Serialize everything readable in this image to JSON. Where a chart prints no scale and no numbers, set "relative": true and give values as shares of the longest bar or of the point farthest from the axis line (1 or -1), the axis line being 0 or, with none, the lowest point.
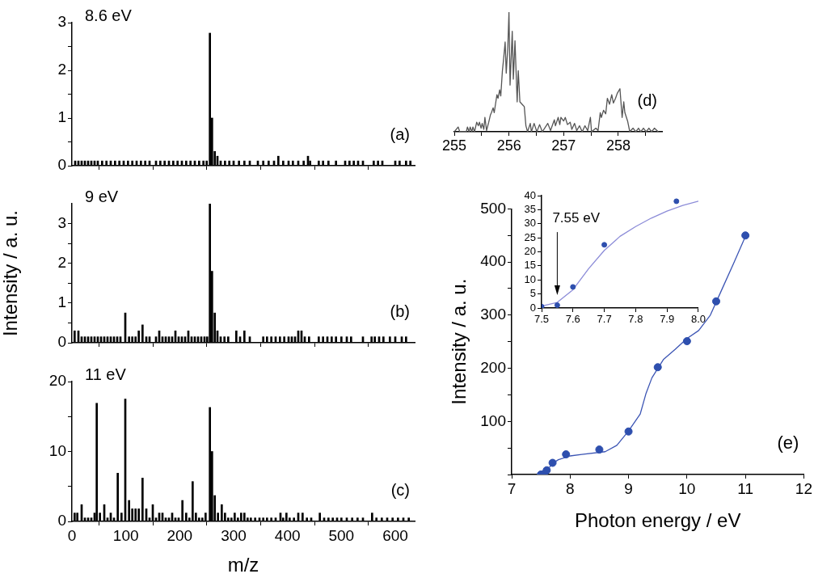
{
  "chart_data": [
    {
      "type": "bar",
      "color": "#000000",
      "x": [
        6,
        12,
        18,
        24,
        30,
        36,
        42,
        48,
        56,
        64,
        72,
        80,
        88,
        96,
        104,
        112,
        120,
        128,
        136,
        144,
        156,
        164,
        172,
        180,
        188,
        196,
        204,
        212,
        220,
        228,
        236,
        244,
        250,
        256,
        260,
        265,
        270,
        276,
        284,
        292,
        300,
        310,
        320,
        330,
        345,
        355,
        365,
        375,
        383,
        392,
        402,
        410,
        420,
        430,
        438,
        442,
        458,
        466,
        476,
        490,
        507,
        515,
        523,
        531,
        540,
        560,
        568,
        576,
        600,
        608,
        620,
        628
      ],
      "values": [
        0.1,
        0.1,
        0.1,
        0.1,
        0.1,
        0.1,
        0.1,
        0.1,
        0.1,
        0.1,
        0.1,
        0.1,
        0.1,
        0.1,
        0.1,
        0.1,
        0.1,
        0.1,
        0.1,
        0.1,
        0.1,
        0.1,
        0.1,
        0.1,
        0.1,
        0.1,
        0.1,
        0.1,
        0.1,
        0.1,
        0.1,
        0.1,
        0.1,
        2.78,
        1.0,
        0.3,
        0.2,
        0.1,
        0.1,
        0.1,
        0.1,
        0.1,
        0.1,
        0.1,
        0.1,
        0.1,
        0.1,
        0.1,
        0.2,
        0.1,
        0.1,
        0.1,
        0.1,
        0.1,
        0.2,
        0.1,
        0.1,
        0.1,
        0.1,
        0.1,
        0.1,
        0.1,
        0.1,
        0.1,
        0.1,
        0.1,
        0.1,
        0.1,
        0.1,
        0.1,
        0.1,
        0.1
      ],
      "xlim": [
        0,
        636
      ],
      "xticks": [
        0,
        100,
        200,
        300,
        400,
        500,
        600
      ],
      "ylim": [
        0,
        3
      ],
      "yticks": [
        0,
        {
          "value": 0.5,
          "label": null
        },
        1,
        {
          "value": 1.5,
          "label": null
        },
        2,
        {
          "value": 2.5,
          "label": null
        },
        3
      ],
      "tick_labels": "y",
      "annotations": [
        "8.6 eV",
        "(a)"
      ]
    },
    {
      "type": "bar",
      "color": "#000000",
      "x": [
        5,
        12,
        18,
        24,
        30,
        36,
        42,
        48,
        54,
        60,
        66,
        72,
        78,
        84,
        90,
        99,
        106,
        112,
        118,
        124,
        131,
        138,
        144,
        156,
        162,
        168,
        174,
        180,
        186,
        192,
        198,
        204,
        210,
        216,
        222,
        228,
        234,
        240,
        246,
        251,
        256,
        260,
        265,
        270,
        276,
        283,
        290,
        305,
        312,
        320,
        330,
        355,
        362,
        370,
        378,
        386,
        394,
        402,
        408,
        414,
        420,
        426,
        432,
        440,
        458,
        466,
        474,
        482,
        490,
        500,
        510,
        518,
        540,
        556,
        562,
        570,
        578,
        590,
        600,
        612,
        620
      ],
      "values": [
        0.3,
        0.3,
        0.15,
        0.15,
        0.15,
        0.15,
        0.15,
        0.15,
        0.15,
        0.15,
        0.15,
        0.15,
        0.15,
        0.15,
        0.15,
        0.75,
        0.15,
        0.15,
        0.15,
        0.3,
        0.45,
        0.15,
        0.15,
        0.15,
        0.3,
        0.15,
        0.15,
        0.15,
        0.15,
        0.3,
        0.15,
        0.15,
        0.15,
        0.3,
        0.15,
        0.15,
        0.15,
        0.15,
        0.15,
        0.15,
        3.5,
        1.8,
        0.75,
        0.3,
        0.15,
        0.15,
        0.15,
        0.3,
        0.15,
        0.3,
        0.15,
        0.15,
        0.15,
        0.15,
        0.15,
        0.15,
        0.15,
        0.15,
        0.15,
        0.15,
        0.3,
        0.3,
        0.15,
        0.15,
        0.15,
        0.15,
        0.15,
        0.15,
        0.15,
        0.15,
        0.15,
        0.15,
        0.15,
        0.15,
        0.15,
        0.15,
        0.15,
        0.15,
        0.15,
        0.15,
        0.15
      ],
      "xlim": [
        0,
        636
      ],
      "xticks": [
        0,
        100,
        200,
        300,
        400,
        500,
        600
      ],
      "ylim": [
        0,
        3.5
      ],
      "yticks": [
        0,
        {
          "value": 0.5,
          "label": null
        },
        1,
        {
          "value": 1.5,
          "label": null
        },
        2,
        {
          "value": 2.5,
          "label": null
        },
        3
      ],
      "tick_labels": "y",
      "ylabel": "Intensity / a. u.",
      "annotations": [
        "9 eV",
        "(b)"
      ]
    },
    {
      "type": "bar",
      "color": "#000000",
      "x": [
        5,
        10,
        18,
        24,
        30,
        36,
        42,
        46,
        52,
        60,
        66,
        72,
        78,
        85,
        92,
        99,
        106,
        112,
        118,
        124,
        131,
        138,
        144,
        150,
        156,
        162,
        168,
        174,
        180,
        186,
        192,
        198,
        205,
        212,
        218,
        224,
        230,
        236,
        242,
        248,
        256,
        260,
        265,
        271,
        278,
        284,
        290,
        296,
        302,
        308,
        314,
        320,
        326,
        332,
        340,
        348,
        355,
        362,
        370,
        378,
        387,
        392,
        398,
        404,
        412,
        420,
        428,
        436,
        444,
        460,
        468,
        476,
        484,
        492,
        500,
        510,
        520,
        530,
        540,
        557,
        565,
        575,
        585,
        595,
        605,
        615,
        625
      ],
      "values": [
        1.2,
        1.2,
        2.4,
        0.5,
        0.5,
        0.5,
        1.2,
        16.9,
        1.2,
        2.4,
        0.5,
        1.2,
        0.5,
        6.9,
        1.2,
        17.5,
        3.0,
        1.8,
        1.8,
        1.8,
        6.2,
        1.8,
        0.5,
        2.4,
        0.5,
        1.2,
        1.2,
        0.5,
        0.5,
        1.2,
        0.5,
        0.5,
        3.0,
        1.2,
        0.5,
        5.7,
        1.2,
        0.5,
        0.5,
        1.2,
        16.3,
        10,
        3.7,
        1.2,
        2.4,
        1.2,
        0.5,
        0.5,
        1.2,
        0.5,
        1.2,
        1.2,
        0.5,
        0.5,
        0.5,
        0.5,
        0.5,
        0.5,
        0.5,
        0.5,
        1.2,
        0.5,
        1.2,
        0.5,
        0.5,
        1.2,
        1.2,
        0.5,
        0.5,
        1.2,
        0.5,
        0.5,
        0.5,
        0.5,
        0.5,
        0.5,
        0.5,
        0.5,
        0.5,
        1.2,
        0.5,
        0.5,
        0.5,
        0.5,
        0.5,
        0.5,
        0.5
      ],
      "xlim": [
        0,
        636
      ],
      "xticks": [
        0,
        100,
        200,
        300,
        400,
        500,
        600
      ],
      "ylim": [
        0,
        20
      ],
      "yticks": [
        0,
        {
          "value": 5,
          "label": null
        },
        10,
        {
          "value": 15,
          "label": null
        },
        20
      ],
      "xlabel": "m/z",
      "annotations": [
        "11 eV",
        "(c)"
      ]
    },
    {
      "type": "line",
      "relative": true,
      "color": "#555555",
      "marker": "none",
      "x": [
        255.0,
        255.07,
        255.1,
        255.22,
        255.24,
        255.27,
        255.29,
        255.32,
        255.34,
        255.37,
        255.41,
        255.44,
        255.46,
        255.49,
        255.51,
        255.54,
        255.56,
        255.59,
        255.63,
        255.66,
        255.68,
        255.71,
        255.73,
        255.76,
        255.78,
        255.8,
        255.83,
        255.85,
        255.88,
        255.9,
        255.93,
        255.95,
        255.98,
        256.0,
        256.02,
        256.06,
        256.08,
        256.11,
        256.15,
        256.17,
        256.2,
        256.24,
        256.28,
        256.31,
        256.34,
        256.39,
        256.41,
        256.46,
        256.51,
        256.56,
        256.61,
        256.71,
        256.76,
        256.83,
        256.85,
        256.9,
        256.93,
        256.95,
        257.0,
        257.03,
        257.07,
        257.12,
        257.15,
        257.2,
        257.24,
        257.29,
        257.34,
        257.39,
        257.44,
        257.49,
        257.51,
        257.59,
        257.63,
        257.67,
        257.69,
        257.73,
        257.77,
        257.8,
        257.84,
        257.88,
        257.91,
        257.95,
        257.98,
        258.03,
        258.07,
        258.1,
        258.12,
        258.17,
        258.21,
        258.27,
        258.32,
        258.37,
        258.41,
        258.46,
        258.51,
        258.56,
        258.61,
        258.66,
        258.73
      ],
      "values": [
        0,
        0.04,
        0,
        0,
        0.04,
        0,
        0.04,
        0,
        0.04,
        0,
        0.08,
        0.05,
        0.08,
        0.03,
        0.07,
        0.02,
        0.12,
        0.01,
        0.08,
        0.14,
        0.16,
        0.2,
        0.16,
        0.25,
        0.31,
        0.28,
        0.35,
        0.3,
        0.51,
        0.6,
        0.75,
        0.49,
        0.72,
        1.0,
        0.39,
        0.84,
        0.44,
        0.76,
        0.25,
        0.51,
        0.25,
        0.23,
        0.21,
        0.05,
        0,
        0.07,
        0,
        0.07,
        0,
        0.06,
        0,
        0.07,
        0.01,
        0.1,
        0.05,
        0.12,
        0.06,
        0.12,
        0.09,
        0.12,
        0.06,
        0.08,
        0.02,
        0.07,
        0.01,
        0.05,
        0,
        0.05,
        0.01,
        0.12,
        0,
        0.03,
        0.01,
        0.16,
        0.12,
        0.18,
        0.15,
        0.28,
        0.23,
        0.31,
        0.24,
        0.28,
        0.32,
        0.36,
        0.12,
        0.25,
        0.16,
        0.09,
        0,
        0.03,
        0,
        0.03,
        0,
        0.03,
        0,
        0.03,
        0,
        0.03,
        0
      ],
      "xlim": [
        255,
        258.8
      ],
      "xticks": [
        255,
        {
          "value": 255.5,
          "label": null
        },
        256,
        {
          "value": 256.5,
          "label": null
        },
        257,
        {
          "value": 257.5,
          "label": null
        },
        258,
        {
          "value": 258.5,
          "label": null
        }
      ],
      "annotations": [
        "(d)"
      ]
    },
    {
      "type": "scatter",
      "series": [
        {
          "type": "scatter",
          "marker": "circle",
          "color": "#2e4fae",
          "x": [
            7.5,
            7.55,
            7.6,
            7.7,
            7.93,
            8.5,
            9,
            9.5,
            10,
            10.5,
            11
          ],
          "values": [
            0,
            1,
            8,
            22,
            38,
            47,
            81,
            202,
            251,
            326,
            450
          ]
        },
        {
          "type": "line",
          "marker": "none",
          "color": "#3c55b4",
          "x": [
            7.5,
            7.55,
            7.6,
            7.7,
            7.8,
            8.0,
            8.2,
            8.6,
            8.8,
            9.0,
            9.2,
            9.3,
            9.4,
            9.6,
            9.8,
            10.0,
            10.2,
            10.4,
            10.6,
            10.8,
            11
          ],
          "values": [
            1,
            2,
            7,
            21,
            28,
            35,
            38,
            43,
            55,
            82,
            114,
            153,
            182,
            217,
            236,
            256,
            271,
            300,
            349,
            398,
            448
          ]
        }
      ],
      "xlim": [
        7,
        12
      ],
      "xticks": [
        7,
        8,
        9,
        10,
        11,
        12
      ],
      "ylim": [
        0,
        500
      ],
      "yticks": [
        {
          "value": 0,
          "label": null
        },
        {
          "value": 50,
          "label": null
        },
        100,
        {
          "value": 150,
          "label": null
        },
        200,
        {
          "value": 250,
          "label": null
        },
        300,
        {
          "value": 350,
          "label": null
        },
        400,
        {
          "value": 450,
          "label": null
        },
        500
      ],
      "xlabel": "Photon energy / eV",
      "ylabel": "Intensity / a. u.",
      "annotations": [
        "(e)"
      ]
    },
    {
      "type": "scatter",
      "series": [
        {
          "type": "scatter",
          "marker": "circle",
          "color": "#2e4fae",
          "x": [
            7.5,
            7.55,
            7.6,
            7.7,
            7.93
          ],
          "values": [
            0.5,
            1,
            7.5,
            22.5,
            38
          ]
        },
        {
          "type": "line",
          "marker": "none",
          "color": "#8c8cd8",
          "x": [
            7.5,
            7.55,
            7.6,
            7.65,
            7.7,
            7.75,
            7.8,
            7.85,
            7.9,
            7.95,
            8.0
          ],
          "values": [
            0.7,
            2,
            6.5,
            14,
            20.5,
            25.5,
            29,
            32,
            34.5,
            36.5,
            38
          ]
        }
      ],
      "xlim": [
        7.5,
        8.0
      ],
      "xticks": [
        7.5,
        7.6,
        7.7,
        7.8,
        7.9,
        {
          "value": 8.0,
          "label": "8.0"
        }
      ],
      "ylim": [
        0,
        40
      ],
      "yticks": [
        0,
        5,
        10,
        15,
        20,
        25,
        30,
        35,
        40
      ],
      "annotations": [
        {
          "text": "7.55 eV",
          "x": 7.55,
          "y": 4
        }
      ]
    }
  ]
}
